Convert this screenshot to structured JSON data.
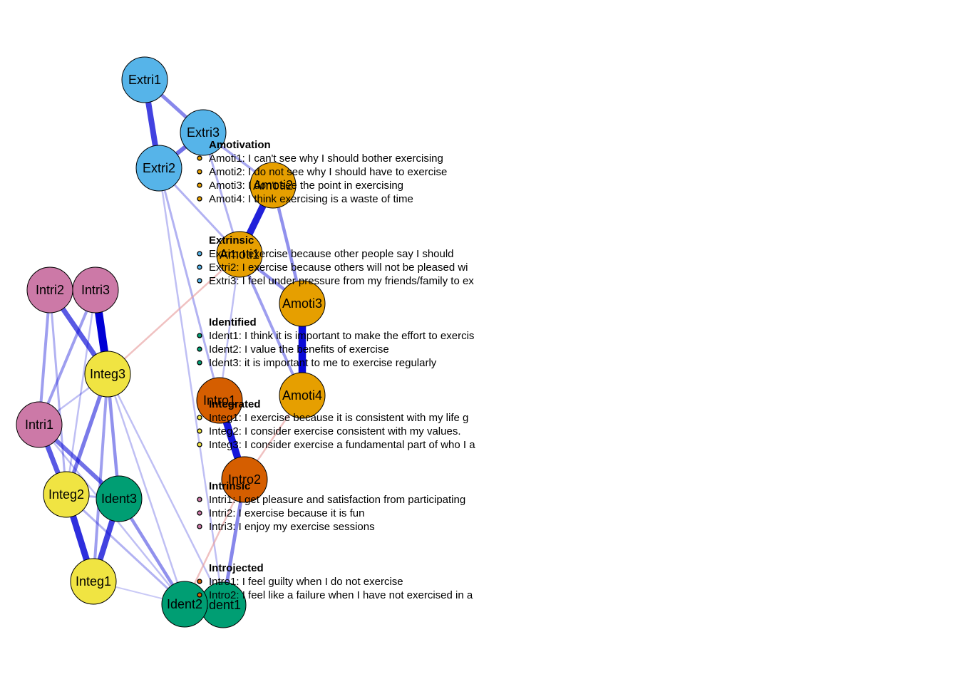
{
  "colors": {
    "Amotivation": "#E69F00",
    "Extrinsic": "#56B4E9",
    "Identified": "#009E73",
    "Integrated": "#F0E442",
    "Intrinsic": "#CC79A7",
    "Introjected": "#D55E00",
    "positive_edge": "#0000D5",
    "negative_edge": "#E8A0A0"
  },
  "nodes": [
    {
      "id": "Extri1",
      "label": "Extri1",
      "group": "Extrinsic"
    },
    {
      "id": "Extri3",
      "label": "Extri3",
      "group": "Extrinsic"
    },
    {
      "id": "Extri2",
      "label": "Extri2",
      "group": "Extrinsic"
    },
    {
      "id": "Amoti2",
      "label": "Amoti2",
      "group": "Amotivation"
    },
    {
      "id": "Amoti1",
      "label": "Amoti1",
      "group": "Amotivation"
    },
    {
      "id": "Amoti3",
      "label": "Amoti3",
      "group": "Amotivation"
    },
    {
      "id": "Amoti4",
      "label": "Amoti4",
      "group": "Amotivation"
    },
    {
      "id": "Intri2",
      "label": "Intri2",
      "group": "Intrinsic"
    },
    {
      "id": "Intri3",
      "label": "Intri3",
      "group": "Intrinsic"
    },
    {
      "id": "Intri1",
      "label": "Intri1",
      "group": "Intrinsic"
    },
    {
      "id": "Integ3",
      "label": "Integ3",
      "group": "Integrated"
    },
    {
      "id": "Integ2",
      "label": "Integ2",
      "group": "Integrated"
    },
    {
      "id": "Integ1",
      "label": "Integ1",
      "group": "Integrated"
    },
    {
      "id": "Ident3",
      "label": "Ident3",
      "group": "Identified"
    },
    {
      "id": "Ident2",
      "label": "Ident2",
      "group": "Identified"
    },
    {
      "id": "Ident1",
      "label": "Ident1",
      "group": "Identified"
    },
    {
      "id": "Intro1",
      "label": "Intro1",
      "group": "Introjected"
    },
    {
      "id": "Intro2",
      "label": "Intro2",
      "group": "Introjected"
    }
  ],
  "edges": [
    {
      "from": "Extri1",
      "to": "Extri2",
      "weight": 0.7,
      "sign": "positive"
    },
    {
      "from": "Extri1",
      "to": "Extri3",
      "weight": 0.4,
      "sign": "positive"
    },
    {
      "from": "Extri3",
      "to": "Extri2",
      "weight": 0.5,
      "sign": "positive"
    },
    {
      "from": "Extri3",
      "to": "Amoti2",
      "weight": 0.25,
      "sign": "positive"
    },
    {
      "from": "Extri3",
      "to": "Amoti1",
      "weight": 0.2,
      "sign": "positive"
    },
    {
      "from": "Extri2",
      "to": "Amoti1",
      "weight": 0.2,
      "sign": "positive"
    },
    {
      "from": "Extri2",
      "to": "Ident1",
      "weight": 0.15,
      "sign": "positive"
    },
    {
      "from": "Extri2",
      "to": "Intro1",
      "weight": 0.2,
      "sign": "positive"
    },
    {
      "from": "Amoti2",
      "to": "Amoti1",
      "weight": 0.85,
      "sign": "positive"
    },
    {
      "from": "Amoti2",
      "to": "Amoti3",
      "weight": 0.35,
      "sign": "positive"
    },
    {
      "from": "Amoti1",
      "to": "Amoti3",
      "weight": 0.35,
      "sign": "positive"
    },
    {
      "from": "Amoti1",
      "to": "Amoti4",
      "weight": 0.3,
      "sign": "positive"
    },
    {
      "from": "Amoti3",
      "to": "Amoti4",
      "weight": 0.95,
      "sign": "positive"
    },
    {
      "from": "Amoti1",
      "to": "Intro1",
      "weight": 0.15,
      "sign": "positive"
    },
    {
      "from": "Intri2",
      "to": "Integ3",
      "weight": 0.6,
      "sign": "positive"
    },
    {
      "from": "Intri3",
      "to": "Integ3",
      "weight": 1.0,
      "sign": "positive"
    },
    {
      "from": "Intri2",
      "to": "Intri1",
      "weight": 0.3,
      "sign": "positive"
    },
    {
      "from": "Intri3",
      "to": "Intri1",
      "weight": 0.3,
      "sign": "positive"
    },
    {
      "from": "Intri2",
      "to": "Integ2",
      "weight": 0.2,
      "sign": "positive"
    },
    {
      "from": "Intri3",
      "to": "Integ2",
      "weight": 0.15,
      "sign": "positive"
    },
    {
      "from": "Intri1",
      "to": "Integ2",
      "weight": 0.6,
      "sign": "positive"
    },
    {
      "from": "Intri1",
      "to": "Ident3",
      "weight": 0.5,
      "sign": "positive"
    },
    {
      "from": "Intri1",
      "to": "Integ3",
      "weight": 0.15,
      "sign": "positive"
    },
    {
      "from": "Integ3",
      "to": "Integ2",
      "weight": 0.45,
      "sign": "positive"
    },
    {
      "from": "Integ3",
      "to": "Ident3",
      "weight": 0.35,
      "sign": "positive"
    },
    {
      "from": "Integ3",
      "to": "Integ1",
      "weight": 0.3,
      "sign": "positive"
    },
    {
      "from": "Integ3",
      "to": "Ident2",
      "weight": 0.15,
      "sign": "positive"
    },
    {
      "from": "Integ3",
      "to": "Amoti1",
      "weight": 0.2,
      "sign": "negative"
    },
    {
      "from": "Integ2",
      "to": "Integ1",
      "weight": 0.8,
      "sign": "positive"
    },
    {
      "from": "Integ2",
      "to": "Ident2",
      "weight": 0.2,
      "sign": "positive"
    },
    {
      "from": "Integ2",
      "to": "Ident3",
      "weight": 0.2,
      "sign": "positive"
    },
    {
      "from": "Ident3",
      "to": "Integ1",
      "weight": 0.7,
      "sign": "positive"
    },
    {
      "from": "Ident3",
      "to": "Ident2",
      "weight": 0.35,
      "sign": "positive"
    },
    {
      "from": "Intri1",
      "to": "Ident2",
      "weight": 0.15,
      "sign": "positive"
    },
    {
      "from": "Integ1",
      "to": "Ident2",
      "weight": 0.1,
      "sign": "positive"
    },
    {
      "from": "Ident2",
      "to": "Ident1",
      "weight": 0.5,
      "sign": "positive"
    },
    {
      "from": "Ident1",
      "to": "Intro2",
      "weight": 0.4,
      "sign": "positive"
    },
    {
      "from": "Ident2",
      "to": "Intro2",
      "weight": 0.2,
      "sign": "negative"
    },
    {
      "from": "Intro1",
      "to": "Intro2",
      "weight": 0.9,
      "sign": "positive"
    },
    {
      "from": "Intro2",
      "to": "Amoti4",
      "weight": 0.2,
      "sign": "negative"
    },
    {
      "from": "Integ3",
      "to": "Ident1",
      "weight": 0.15,
      "sign": "positive"
    }
  ],
  "legend": [
    {
      "title": "Amotivation",
      "group": "Amotivation",
      "items": [
        "Amoti1: I can't see why I should bother exercising",
        "Amoti2: I do not see why I should have to exercise",
        "Amoti3: I don't see the point in exercising",
        "Amoti4:  I think exercising is a waste of time"
      ]
    },
    {
      "title": "Extrinsic",
      "group": "Extrinsic",
      "items": [
        "Extri1:  I exercise because other people say I should",
        "Extri2:  I exercise because others will not be pleased wi",
        "Extri3:  I feel under pressure from my friends/family to ex"
      ]
    },
    {
      "title": "Identified",
      "group": "Identified",
      "items": [
        "Ident1:  I think it is important to make the effort to exercis",
        "Ident2:  I value the benefits of exercise",
        "Ident3:  it is important to me to exercise regularly"
      ]
    },
    {
      "title": "Integrated",
      "group": "Integrated",
      "items": [
        "Integ1:  I exercise because it is consistent with my life g",
        "Integ2:  I consider exercise consistent with my values.",
        "Integ3:  I consider exercise a fundamental part of who I a"
      ]
    },
    {
      "title": "Intrinsic",
      "group": "Intrinsic",
      "items": [
        "Intri1:  I get pleasure and satisfaction from participating",
        "Intri2:  I exercise because it is fun",
        "Intri3:  I enjoy my exercise sessions"
      ]
    },
    {
      "title": "Introjected",
      "group": "Introjected",
      "items": [
        "Intro1:  I feel guilty when I do not exercise",
        "Intro2:  I feel like a failure when I have not exercised in a"
      ]
    }
  ]
}
